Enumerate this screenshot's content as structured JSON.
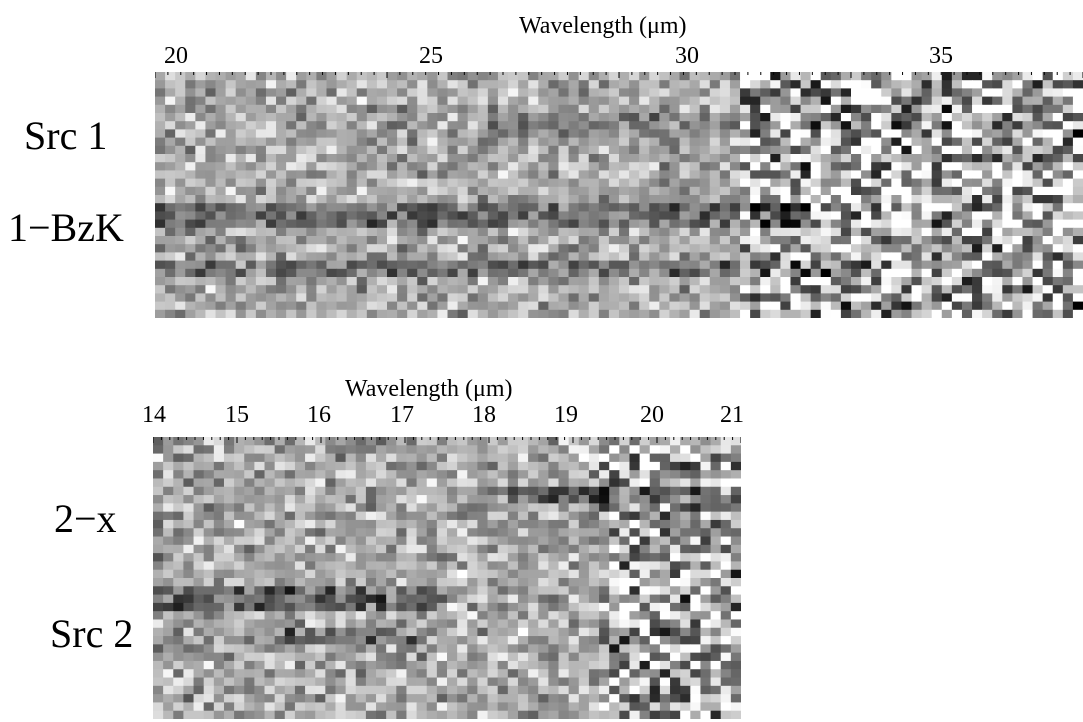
{
  "figure": [
    {
      "axis_title": "Wavelength (μm)",
      "ticks": [
        "20",
        "25",
        "30",
        "35"
      ],
      "row_labels": [
        "Src 1",
        "1−BzK"
      ]
    },
    {
      "axis_title": "Wavelength (μm)",
      "ticks": [
        "14",
        "15",
        "16",
        "17",
        "18",
        "19",
        "20",
        "21"
      ],
      "row_labels": [
        "2−x",
        "Src 2"
      ]
    }
  ]
}
